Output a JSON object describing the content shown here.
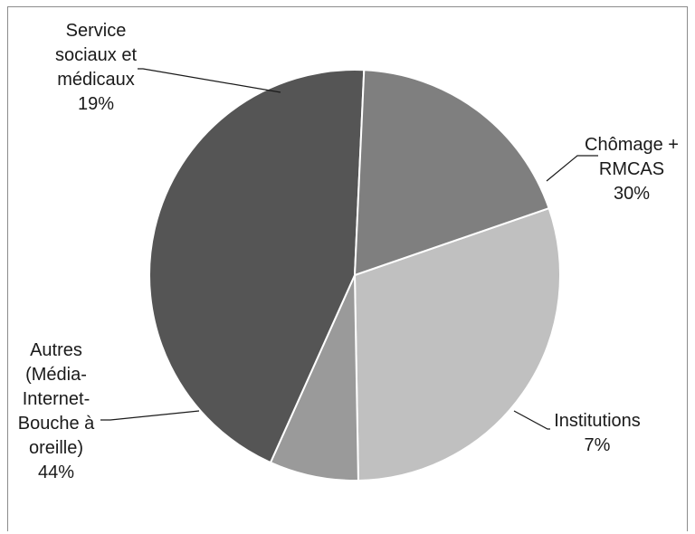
{
  "chart_data": {
    "type": "pie",
    "title": "",
    "slices": [
      {
        "label_lines": [
          "Chômage +",
          "RMCAS"
        ],
        "pct_label": "30%",
        "value": 30,
        "color": "#c0c0c0"
      },
      {
        "label_lines": [
          "Institutions"
        ],
        "pct_label": "7%",
        "value": 7,
        "color": "#9a9a9a"
      },
      {
        "label_lines": [
          "Autres",
          "(Média-",
          "Internet-",
          "Bouche à",
          "oreille)"
        ],
        "pct_label": "44%",
        "value": 44,
        "color": "#555555"
      },
      {
        "label_lines": [
          "Service",
          "sociaux et",
          "médicaux"
        ],
        "pct_label": "19%",
        "value": 19,
        "color": "#7f7f7f"
      }
    ]
  }
}
